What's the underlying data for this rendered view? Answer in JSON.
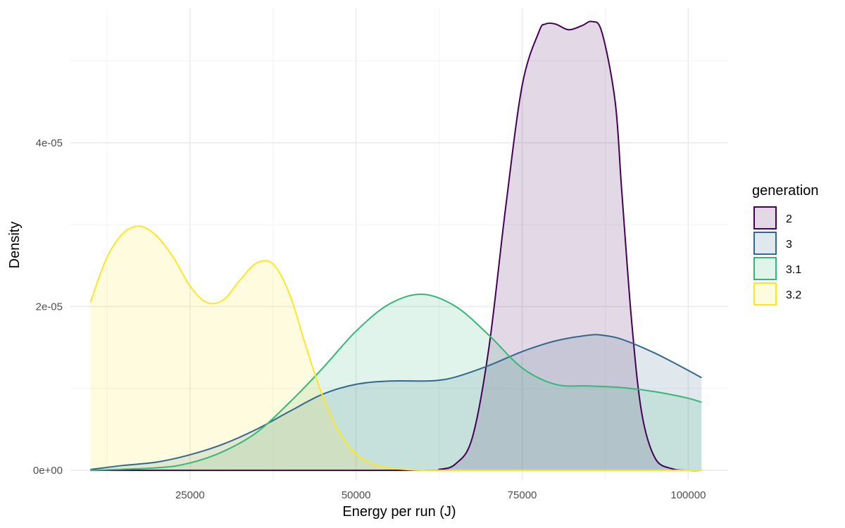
{
  "chart_data": {
    "type": "area",
    "subtype": "density",
    "title": "",
    "xlabel": "Energy per run (J)",
    "ylabel": "Density",
    "xlim": [
      7000,
      106000
    ],
    "ylim": [
      -1.2e-06,
      5.64e-05
    ],
    "x_ticks": [
      25000,
      50000,
      75000,
      100000
    ],
    "x_tick_labels": [
      "25000",
      "50000",
      "75000",
      "100000"
    ],
    "y_ticks": [
      0,
      2e-05,
      4e-05
    ],
    "y_tick_labels": [
      "0e+00",
      "2e-05",
      "4e-05"
    ],
    "grid": true,
    "legend": {
      "title": "generation",
      "position": "right"
    },
    "series": [
      {
        "name": "2",
        "color": "#440154",
        "fill": "#440154",
        "x": [
          10000,
          60000,
          62500,
          65000,
          67500,
          70000,
          72500,
          75000,
          77500,
          78500,
          80000,
          82000,
          84000,
          85500,
          87000,
          89000,
          90000,
          91500,
          93000,
          95000,
          97500,
          100000,
          102000
        ],
        "y": [
          0,
          0,
          1e-07,
          8e-07,
          4e-06,
          1.5e-05,
          3.2e-05,
          4.7e-05,
          5.35e-05,
          5.45e-05,
          5.45e-05,
          5.38e-05,
          5.43e-05,
          5.48e-05,
          5.35e-05,
          4.5e-05,
          3.4e-05,
          1.8e-05,
          7e-06,
          1.5e-06,
          2e-07,
          0,
          0
        ]
      },
      {
        "name": "3",
        "color": "#31688E",
        "fill": "#31688E",
        "x": [
          10000,
          15000,
          20000,
          25000,
          30000,
          35000,
          40000,
          45000,
          50000,
          55000,
          60000,
          62500,
          65000,
          70000,
          75000,
          80000,
          85000,
          87000,
          90000,
          95000,
          100000,
          102000
        ],
        "y": [
          1e-07,
          6e-07,
          1e-06,
          1.9e-06,
          3.2e-06,
          5e-06,
          7.2e-06,
          9.3e-06,
          1.05e-05,
          1.09e-05,
          1.09e-05,
          1.1e-05,
          1.14e-05,
          1.28e-05,
          1.45e-05,
          1.58e-05,
          1.65e-05,
          1.65e-05,
          1.6e-05,
          1.43e-05,
          1.22e-05,
          1.13e-05
        ]
      },
      {
        "name": "3.1",
        "color": "#35B779",
        "fill": "#35B779",
        "x": [
          10000,
          20000,
          25000,
          30000,
          35000,
          40000,
          45000,
          50000,
          55000,
          60000,
          65000,
          70000,
          75000,
          80000,
          85000,
          90000,
          95000,
          100000,
          102000
        ],
        "y": [
          0,
          3e-07,
          9e-07,
          2.3e-06,
          4.6e-06,
          8.3e-06,
          1.25e-05,
          1.7e-05,
          2.03e-05,
          2.15e-05,
          2e-05,
          1.65e-05,
          1.25e-05,
          1.05e-05,
          1.03e-05,
          1.01e-05,
          9.6e-06,
          8.8e-06,
          8.3e-06
        ]
      },
      {
        "name": "3.2",
        "color": "#FDE725",
        "fill": "#FDE725",
        "x": [
          10000,
          12500,
          15000,
          17500,
          20000,
          22500,
          25000,
          27500,
          30000,
          32500,
          35000,
          37500,
          40000,
          42500,
          45000,
          47500,
          50000,
          52500,
          55000,
          57500,
          60000,
          65000,
          70000,
          80000,
          90000,
          102000
        ],
        "y": [
          2.05e-05,
          2.6e-05,
          2.9e-05,
          2.98e-05,
          2.86e-05,
          2.6e-05,
          2.25e-05,
          2.05e-05,
          2.08e-05,
          2.32e-05,
          2.53e-05,
          2.52e-05,
          2.15e-05,
          1.5e-05,
          9e-06,
          4.6e-06,
          2e-06,
          8e-07,
          3e-07,
          1e-07,
          0,
          0,
          0,
          0,
          0,
          0
        ]
      }
    ]
  }
}
